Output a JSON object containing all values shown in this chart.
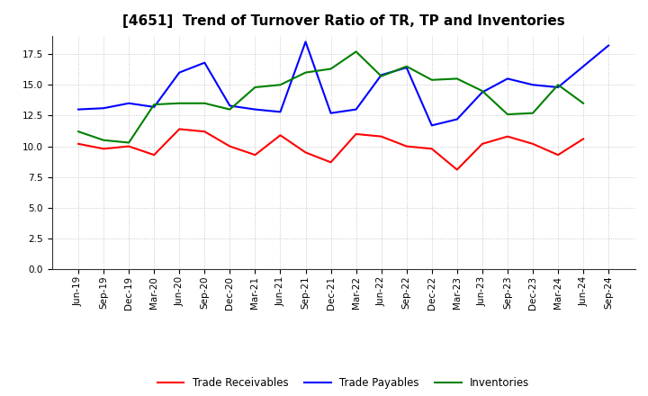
{
  "title": "[4651]  Trend of Turnover Ratio of TR, TP and Inventories",
  "x_labels": [
    "Jun-19",
    "Sep-19",
    "Dec-19",
    "Mar-20",
    "Jun-20",
    "Sep-20",
    "Dec-20",
    "Mar-21",
    "Jun-21",
    "Sep-21",
    "Dec-21",
    "Mar-22",
    "Jun-22",
    "Sep-22",
    "Dec-22",
    "Mar-23",
    "Jun-23",
    "Sep-23",
    "Dec-23",
    "Mar-24",
    "Jun-24",
    "Sep-24"
  ],
  "trade_receivables": [
    10.2,
    9.8,
    10.0,
    9.3,
    11.4,
    11.2,
    10.0,
    9.3,
    10.9,
    9.5,
    8.7,
    11.0,
    10.8,
    10.0,
    9.8,
    8.1,
    10.2,
    10.8,
    10.2,
    9.3,
    10.6,
    null
  ],
  "trade_payables": [
    13.0,
    13.1,
    13.5,
    13.2,
    16.0,
    16.8,
    13.3,
    13.0,
    12.8,
    18.5,
    12.7,
    13.0,
    15.8,
    16.4,
    11.7,
    12.2,
    14.4,
    15.5,
    15.0,
    14.8,
    16.5,
    18.2
  ],
  "inventories": [
    11.2,
    10.5,
    10.3,
    13.4,
    13.5,
    13.5,
    13.0,
    14.8,
    15.0,
    16.0,
    16.3,
    17.7,
    15.7,
    16.5,
    15.4,
    15.5,
    14.5,
    12.6,
    12.7,
    15.0,
    13.5,
    null
  ],
  "ylim": [
    0,
    19
  ],
  "yticks": [
    0.0,
    2.5,
    5.0,
    7.5,
    10.0,
    12.5,
    15.0,
    17.5
  ],
  "line_colors": {
    "trade_receivables": "#ff0000",
    "trade_payables": "#0000ff",
    "inventories": "#008000"
  },
  "legend_labels": [
    "Trade Receivables",
    "Trade Payables",
    "Inventories"
  ],
  "background_color": "#ffffff",
  "grid_color": "#bbbbbb",
  "title_fontsize": 11,
  "tick_fontsize": 7.5,
  "linewidth": 1.5
}
